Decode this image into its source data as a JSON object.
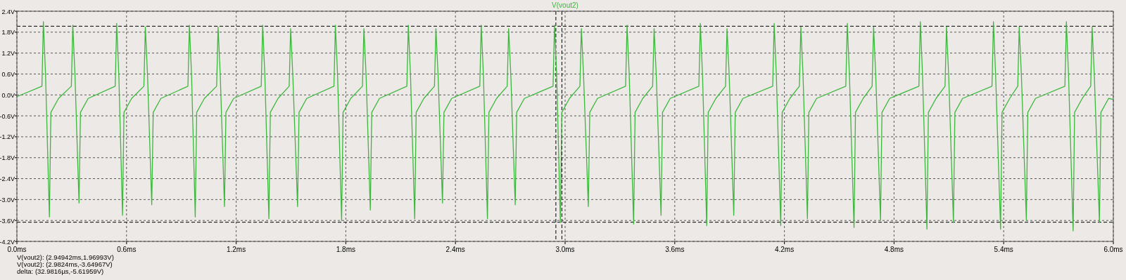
{
  "chart_data": {
    "type": "line",
    "xlim": [
      0,
      6
    ],
    "ylim": [
      -4.2,
      2.4
    ],
    "xticks": [
      {
        "value": 0,
        "label": "0.0ms"
      },
      {
        "value": 0.6,
        "label": "0.6ms"
      },
      {
        "value": 1.2,
        "label": "1.2ms"
      },
      {
        "value": 1.8,
        "label": "1.8ms"
      },
      {
        "value": 2.4,
        "label": "2.4ms"
      },
      {
        "value": 3,
        "label": "3.0ms"
      },
      {
        "value": 3.6,
        "label": "3.6ms"
      },
      {
        "value": 4.2,
        "label": "4.2ms"
      },
      {
        "value": 4.8,
        "label": "4.8ms"
      },
      {
        "value": 5.4,
        "label": "5.4ms"
      },
      {
        "value": 6,
        "label": "6.0ms"
      }
    ],
    "yticks": [
      {
        "value": -4.2,
        "label": "-4.2V"
      },
      {
        "value": -3.6,
        "label": "-3.6V"
      },
      {
        "value": -3,
        "label": "-3.0V"
      },
      {
        "value": -2.4,
        "label": "-2.4V"
      },
      {
        "value": -1.8,
        "label": "-1.8V"
      },
      {
        "value": -1.2,
        "label": "-1.2V"
      },
      {
        "value": -0.6,
        "label": "-0.6V"
      },
      {
        "value": 0,
        "label": "0.0V"
      },
      {
        "value": 0.6,
        "label": "0.6V"
      },
      {
        "value": 1.2,
        "label": "1.2V"
      },
      {
        "value": 1.8,
        "label": "1.8V"
      },
      {
        "value": 2.4,
        "label": "2.4V"
      }
    ],
    "grid": true,
    "legend": "top",
    "line_style": "solid",
    "series": [
      {
        "name": "V(vout2)",
        "color": "#3cb83c",
        "x": [
          0,
          0.137,
          0.145,
          0.157,
          0.178,
          0.186,
          0.228,
          0.298,
          0.306,
          0.318,
          0.34,
          0.348,
          0.39,
          0.538,
          0.546,
          0.558,
          0.578,
          0.586,
          0.628,
          0.695,
          0.703,
          0.715,
          0.738,
          0.746,
          0.788,
          0.936,
          0.944,
          0.956,
          0.976,
          0.984,
          1.026,
          1.093,
          1.101,
          1.113,
          1.136,
          1.144,
          1.186,
          1.337,
          1.345,
          1.357,
          1.379,
          1.387,
          1.429,
          1.49,
          1.498,
          1.51,
          1.536,
          1.544,
          1.586,
          1.735,
          1.743,
          1.755,
          1.777,
          1.785,
          1.827,
          1.891,
          1.899,
          1.911,
          1.934,
          1.942,
          1.984,
          2.134,
          2.142,
          2.154,
          2.177,
          2.185,
          2.227,
          2.285,
          2.293,
          2.305,
          2.329,
          2.337,
          2.379,
          2.533,
          2.541,
          2.553,
          2.575,
          2.583,
          2.625,
          2.683,
          2.691,
          2.703,
          2.727,
          2.735,
          2.777,
          2.934,
          2.942,
          2.954,
          2.974,
          2.982,
          3.024,
          3.081,
          3.089,
          3.101,
          3.127,
          3.135,
          3.177,
          3.331,
          3.339,
          3.351,
          3.375,
          3.383,
          3.425,
          3.479,
          3.487,
          3.499,
          3.525,
          3.533,
          3.575,
          3.732,
          3.74,
          3.752,
          3.775,
          3.783,
          3.825,
          3.878,
          3.886,
          3.898,
          3.923,
          3.931,
          3.973,
          4.136,
          4.144,
          4.156,
          4.18,
          4.188,
          4.23,
          4.282,
          4.29,
          4.302,
          4.326,
          4.334,
          4.376,
          4.536,
          4.544,
          4.556,
          4.581,
          4.589,
          4.631,
          4.68,
          4.688,
          4.7,
          4.726,
          4.734,
          4.776,
          4.936,
          4.944,
          4.956,
          4.98,
          4.988,
          5.03,
          5.079,
          5.087,
          5.099,
          5.125,
          5.133,
          5.175,
          5.336,
          5.344,
          5.356,
          5.383,
          5.391,
          5.433,
          5.477,
          5.485,
          5.497,
          5.524,
          5.532,
          5.574,
          5.735,
          5.743,
          5.755,
          5.78,
          5.788,
          5.83,
          5.876,
          5.884,
          5.896,
          5.924,
          5.932,
          5.974,
          6
        ],
        "values": [
          -0.05,
          0.25,
          2.1,
          0.55,
          -3.5,
          -0.5,
          -0.1,
          0.25,
          2.0,
          0.55,
          -3.1,
          -0.5,
          -0.1,
          0.25,
          2.05,
          0.55,
          -3.45,
          -0.5,
          -0.1,
          0.25,
          1.95,
          0.55,
          -3.15,
          -0.5,
          -0.1,
          0.25,
          2.0,
          0.55,
          -3.5,
          -0.5,
          -0.1,
          0.25,
          1.95,
          0.55,
          -3.2,
          -0.5,
          -0.1,
          0.25,
          2.0,
          0.55,
          -3.55,
          -0.5,
          -0.1,
          0.25,
          1.9,
          0.55,
          -3.2,
          -0.5,
          -0.1,
          0.25,
          2.0,
          0.55,
          -3.6,
          -0.5,
          -0.1,
          0.25,
          1.9,
          0.55,
          -3.3,
          -0.5,
          -0.1,
          0.25,
          2.0,
          0.55,
          -3.55,
          -0.5,
          -0.1,
          0.25,
          1.9,
          0.55,
          -3.1,
          -0.5,
          -0.1,
          0.25,
          2.0,
          0.55,
          -3.55,
          -0.5,
          -0.1,
          0.25,
          1.9,
          0.55,
          -3.15,
          -0.5,
          -0.1,
          0.25,
          2.0,
          0.55,
          -3.65,
          -0.5,
          -0.1,
          0.25,
          1.9,
          0.55,
          -3.2,
          -0.5,
          -0.1,
          0.25,
          2.0,
          0.55,
          -3.7,
          -0.5,
          -0.1,
          0.25,
          1.9,
          0.55,
          -3.45,
          -0.5,
          -0.1,
          0.25,
          2.05,
          0.55,
          -3.75,
          -0.5,
          -0.1,
          0.25,
          1.9,
          0.55,
          -3.45,
          -0.5,
          -0.1,
          0.25,
          2.05,
          0.55,
          -3.75,
          -0.5,
          -0.1,
          0.25,
          1.95,
          0.55,
          -3.55,
          -0.5,
          -0.1,
          0.25,
          2.05,
          0.55,
          -3.8,
          -0.5,
          -0.1,
          0.25,
          1.95,
          0.55,
          -3.6,
          -0.5,
          -0.1,
          0.25,
          2.1,
          0.55,
          -3.85,
          -0.5,
          -0.1,
          0.25,
          1.95,
          0.55,
          -3.65,
          -0.5,
          -0.1,
          0.25,
          2.1,
          0.55,
          -3.85,
          -0.5,
          -0.1,
          0.25,
          1.95,
          0.55,
          -3.6,
          -0.5,
          -0.1,
          0.25,
          2.1,
          0.55,
          -3.9,
          -0.5,
          -0.1,
          0.25,
          1.95,
          0.55,
          -3.65,
          -0.5,
          -0.1,
          -0.13
        ]
      }
    ],
    "ref_lines": [
      {
        "axis": "y",
        "value": 1.96993,
        "color": "#000000",
        "line_style": "dashed"
      },
      {
        "axis": "y",
        "value": -3.64967,
        "color": "#000000",
        "line_style": "dashed"
      },
      {
        "axis": "x",
        "value": 2.94942,
        "color": "#000000",
        "line_style": "dashed"
      },
      {
        "axis": "x",
        "value": 2.9824,
        "color": "#000000",
        "line_style": "dashed"
      }
    ],
    "annotations": [
      "V(vout2): (2.94942ms,1.96993V)",
      "V(vout2): (2.9824ms,-3.64967V)",
      "delta: (32.9816µs,-5.61959V)"
    ]
  }
}
